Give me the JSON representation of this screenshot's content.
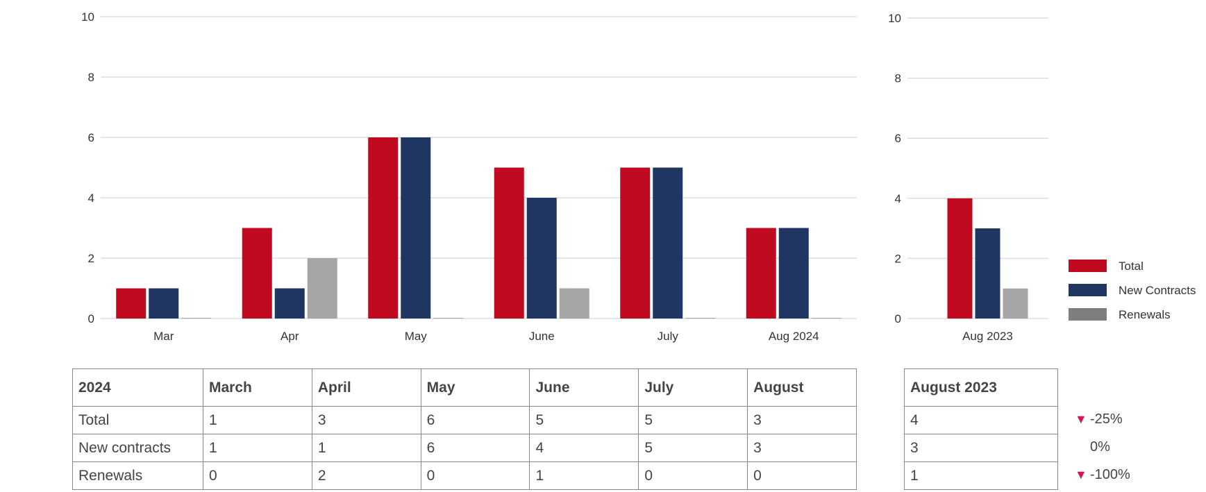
{
  "chart_data": [
    {
      "type": "bar",
      "categories": [
        "Mar",
        "Apr",
        "May",
        "June",
        "July",
        "Aug 2024"
      ],
      "series": [
        {
          "name": "Total",
          "values": [
            1,
            3,
            6,
            5,
            5,
            3
          ]
        },
        {
          "name": "New Contracts",
          "values": [
            1,
            1,
            6,
            4,
            5,
            3
          ]
        },
        {
          "name": "Renewals",
          "values": [
            0,
            2,
            0,
            1,
            0,
            0
          ]
        }
      ],
      "ylim": [
        0,
        10
      ],
      "yticks": [
        0,
        2,
        4,
        6,
        8,
        10
      ],
      "grid": true,
      "colors": [
        "#c00a1f",
        "#1e3661",
        "#a6a6a6"
      ]
    },
    {
      "type": "bar",
      "categories": [
        "Aug 2023"
      ],
      "series": [
        {
          "name": "Total",
          "values": [
            4
          ]
        },
        {
          "name": "New Contracts",
          "values": [
            3
          ]
        },
        {
          "name": "Renewals",
          "values": [
            1
          ]
        }
      ],
      "ylim": [
        0,
        10
      ],
      "yticks": [
        0,
        2,
        4,
        6,
        8,
        10
      ],
      "grid": true,
      "legend": "right",
      "legend_colors": [
        "#c00a1f",
        "#1e3661",
        "#7f7f7f"
      ],
      "colors": [
        "#c00a1f",
        "#1e3661",
        "#a6a6a6"
      ]
    }
  ],
  "table_main": {
    "header": [
      "2024",
      "March",
      "April",
      "May",
      "June",
      "July",
      "August"
    ],
    "rows": [
      [
        "Total",
        "1",
        "3",
        "6",
        "5",
        "5",
        "3"
      ],
      [
        "New contracts",
        "1",
        "1",
        "6",
        "4",
        "5",
        "3"
      ],
      [
        "Renewals",
        "0",
        "2",
        "0",
        "1",
        "0",
        "0"
      ]
    ]
  },
  "table_side": {
    "header": "August 2023",
    "rows": [
      "4",
      "3",
      "1"
    ]
  },
  "changes": [
    {
      "value": "-25%",
      "down": true
    },
    {
      "value": "0%",
      "down": false
    },
    {
      "value": "-100%",
      "down": true
    }
  ],
  "triangle_color": "#d6174b"
}
